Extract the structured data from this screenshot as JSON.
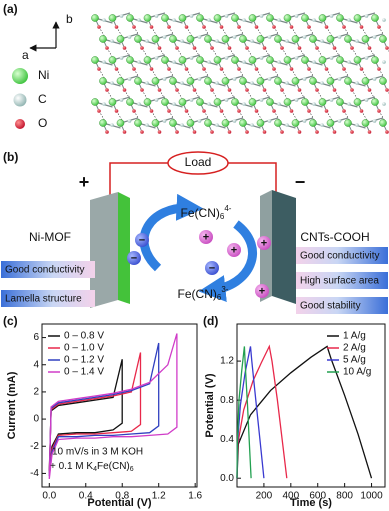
{
  "panels": {
    "a": {
      "label": "(a)",
      "axis_b": "b",
      "axis_a": "a",
      "legend": [
        "Ni",
        "C",
        "O"
      ]
    },
    "b": {
      "label": "(b)",
      "load": "Load",
      "plus": "+",
      "minus": "−",
      "left_electrode": "Ni-MOF",
      "right_electrode": "CNTs-COOH",
      "ion_top": {
        "base": "Fe(CN)",
        "sub": "6",
        "sup": "4-"
      },
      "ion_bottom": {
        "base": "Fe(CN)",
        "sub": "6",
        "sup": "3-"
      },
      "anion_sign": "−",
      "cation_sign": "+",
      "left_features": [
        "Good conductivity",
        "Lamella structure"
      ],
      "right_features": [
        "Good conductivity",
        "High surface area",
        "Good stability"
      ]
    }
  },
  "chart_data": [
    {
      "type": "line",
      "panel_label": "(c)",
      "x_label": "Potential (V)",
      "y_label": "Current (mA)",
      "xlim": [
        -0.08,
        1.62
      ],
      "ylim": [
        -5,
        7
      ],
      "xticks": [
        {
          "value": 0,
          "label": "0.0"
        },
        0.4,
        0.8,
        1.2,
        1.6
      ],
      "yticks": [
        -4,
        -2,
        0,
        2,
        4,
        6
      ],
      "legend": "upper-left",
      "annotation": {
        "line1": "10 mV/s in 3 M KOH",
        "line2": [
          "+ 0.1 M K",
          "4",
          "Fe(CN)",
          "6"
        ]
      },
      "series": [
        {
          "name": "0 – 0.8 V",
          "color": "#111111",
          "x": [
            0,
            0.02,
            0.1,
            0.3,
            0.5,
            0.7,
            0.8,
            0.8,
            0.7,
            0.5,
            0.3,
            0.1,
            0.03,
            0
          ],
          "values": [
            -3.8,
            0.6,
            1.0,
            1.2,
            1.4,
            1.6,
            4.4,
            -0.3,
            -0.8,
            -1.0,
            -1.0,
            -1.1,
            -2.0,
            -3.8
          ]
        },
        {
          "name": "0 – 1.0 V",
          "color": "#e8284a",
          "x": [
            0,
            0.02,
            0.1,
            0.3,
            0.5,
            0.7,
            0.9,
            1.0,
            1.0,
            0.9,
            0.7,
            0.5,
            0.3,
            0.1,
            0.03,
            0
          ],
          "values": [
            -4.0,
            0.7,
            1.1,
            1.3,
            1.5,
            1.7,
            2.0,
            4.9,
            -0.4,
            -0.9,
            -1.0,
            -1.1,
            -1.1,
            -1.2,
            -2.2,
            -4.0
          ]
        },
        {
          "name": "0 – 1.2 V",
          "color": "#3040c0",
          "x": [
            0,
            0.02,
            0.1,
            0.3,
            0.5,
            0.7,
            0.9,
            1.1,
            1.2,
            1.2,
            1.1,
            0.9,
            0.7,
            0.5,
            0.3,
            0.1,
            0.03,
            0
          ],
          "values": [
            -4.2,
            0.8,
            1.2,
            1.4,
            1.6,
            1.8,
            2.1,
            2.6,
            5.6,
            -0.5,
            -1.0,
            -1.1,
            -1.2,
            -1.2,
            -1.3,
            -1.3,
            -2.4,
            -4.2
          ]
        },
        {
          "name": "0 – 1.4 V",
          "color": "#d03cc8",
          "x": [
            0,
            0.02,
            0.1,
            0.3,
            0.5,
            0.7,
            0.9,
            1.1,
            1.3,
            1.4,
            1.4,
            1.3,
            1.1,
            0.9,
            0.7,
            0.5,
            0.3,
            0.1,
            0.03,
            0
          ],
          "values": [
            -4.4,
            0.9,
            1.3,
            1.5,
            1.7,
            1.9,
            2.2,
            2.7,
            4.0,
            6.3,
            -0.6,
            -1.1,
            -1.2,
            -1.3,
            -1.3,
            -1.4,
            -1.4,
            -1.5,
            -2.6,
            -4.4
          ]
        }
      ]
    },
    {
      "type": "line",
      "panel_label": "(d)",
      "x_label": "Time (s)",
      "y_label": "Potential (V)",
      "xlim": [
        0,
        1100
      ],
      "ylim": [
        -0.09,
        1.58
      ],
      "xticks": [
        200,
        400,
        600,
        800,
        1000
      ],
      "yticks": [
        {
          "value": 0,
          "label": "0.0"
        },
        0.4,
        0.8,
        1.2
      ],
      "legend": "upper-right",
      "series": [
        {
          "name": "1 A/g",
          "color": "#111111",
          "x": [
            0,
            10,
            100,
            250,
            400,
            550,
            670,
            700,
            800,
            900,
            1000
          ],
          "values": [
            0,
            0.35,
            0.65,
            0.9,
            1.08,
            1.24,
            1.35,
            1.22,
            0.85,
            0.45,
            0
          ]
        },
        {
          "name": "2 A/g",
          "color": "#e8284a",
          "x": [
            0,
            5,
            50,
            120,
            180,
            240,
            260,
            300,
            340,
            370
          ],
          "values": [
            0,
            0.35,
            0.7,
            1.0,
            1.18,
            1.35,
            1.2,
            0.8,
            0.35,
            0
          ]
        },
        {
          "name": "5 A/g",
          "color": "#3a3ad0",
          "x": [
            0,
            3,
            25,
            60,
            100,
            110,
            140,
            170,
            200
          ],
          "values": [
            0,
            0.35,
            0.75,
            1.08,
            1.35,
            1.2,
            0.8,
            0.4,
            0
          ]
        },
        {
          "name": "10 A/g",
          "color": "#22a050",
          "x": [
            0,
            2,
            15,
            35,
            55,
            62,
            78,
            92,
            105
          ],
          "values": [
            0,
            0.35,
            0.8,
            1.1,
            1.35,
            1.15,
            0.75,
            0.35,
            0
          ]
        }
      ]
    }
  ]
}
